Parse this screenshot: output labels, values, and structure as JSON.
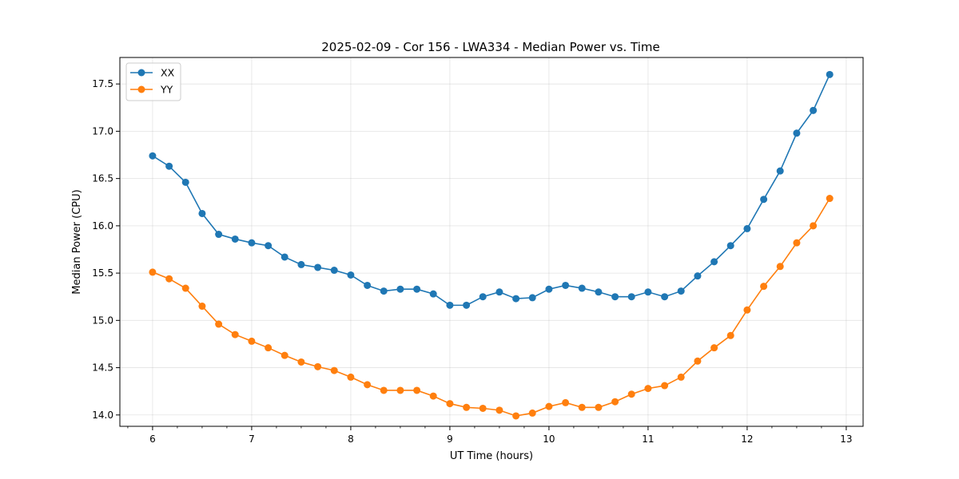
{
  "chart_data": {
    "type": "line",
    "title": "2025-02-09 - Cor 156 - LWA334 - Median Power vs. Time",
    "xlabel": "UT Time (hours)",
    "ylabel": "Median Power (CPU)",
    "xlim": [
      5.67,
      13.17
    ],
    "ylim": [
      13.88,
      17.78
    ],
    "xticks": [
      6,
      7,
      8,
      9,
      10,
      11,
      12,
      13
    ],
    "xtick_labels": [
      "6",
      "7",
      "8",
      "9",
      "10",
      "11",
      "12",
      "13"
    ],
    "xminor_step": 0.25,
    "yticks": [
      14.0,
      14.5,
      15.0,
      15.5,
      16.0,
      16.5,
      17.0,
      17.5
    ],
    "ytick_labels": [
      "14.0",
      "14.5",
      "15.0",
      "15.5",
      "16.0",
      "16.5",
      "17.0",
      "17.5"
    ],
    "grid": true,
    "legend_position": "top-left",
    "x": [
      6.0,
      6.167,
      6.333,
      6.5,
      6.667,
      6.833,
      7.0,
      7.167,
      7.333,
      7.5,
      7.667,
      7.833,
      8.0,
      8.167,
      8.333,
      8.5,
      8.667,
      8.833,
      9.0,
      9.167,
      9.333,
      9.5,
      9.667,
      9.833,
      10.0,
      10.167,
      10.333,
      10.5,
      10.667,
      10.833,
      11.0,
      11.167,
      11.333,
      11.5,
      11.667,
      11.833,
      12.0,
      12.167,
      12.333,
      12.5,
      12.667,
      12.833
    ],
    "series": [
      {
        "name": "XX",
        "color": "#1f77b4",
        "values": [
          16.74,
          16.63,
          16.46,
          16.13,
          15.91,
          15.86,
          15.82,
          15.79,
          15.67,
          15.59,
          15.56,
          15.53,
          15.48,
          15.37,
          15.31,
          15.33,
          15.33,
          15.28,
          15.16,
          15.16,
          15.25,
          15.3,
          15.23,
          15.24,
          15.33,
          15.37,
          15.34,
          15.3,
          15.25,
          15.25,
          15.3,
          15.25,
          15.31,
          15.47,
          15.62,
          15.79,
          15.97,
          16.28,
          16.58,
          16.98,
          17.22,
          17.6
        ]
      },
      {
        "name": "YY",
        "color": "#ff7f0e",
        "values": [
          15.51,
          15.44,
          15.34,
          15.15,
          14.96,
          14.85,
          14.78,
          14.71,
          14.63,
          14.56,
          14.51,
          14.47,
          14.4,
          14.32,
          14.26,
          14.26,
          14.26,
          14.2,
          14.12,
          14.08,
          14.07,
          14.05,
          13.99,
          14.02,
          14.09,
          14.13,
          14.08,
          14.08,
          14.14,
          14.22,
          14.28,
          14.31,
          14.4,
          14.57,
          14.71,
          14.84,
          15.11,
          15.36,
          15.57,
          15.82,
          16.0,
          16.29
        ]
      }
    ]
  }
}
